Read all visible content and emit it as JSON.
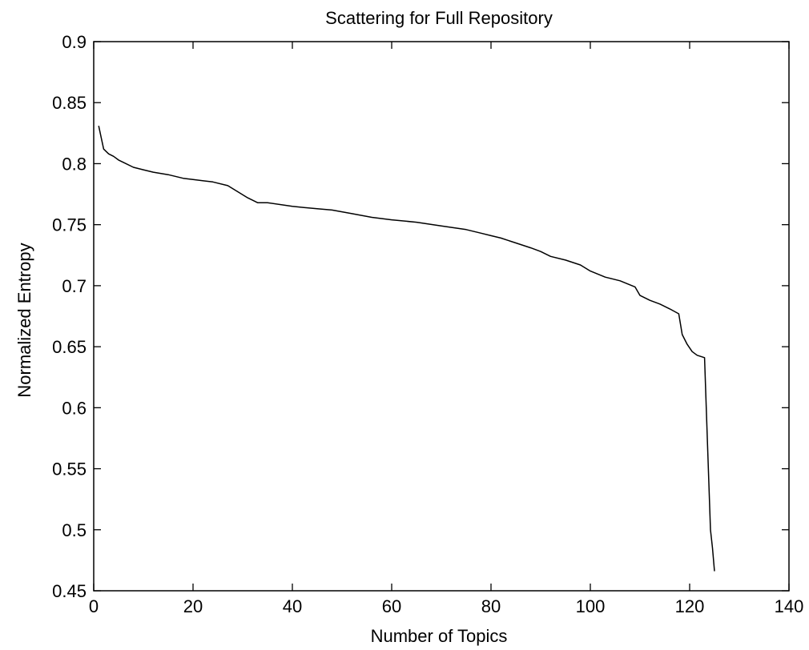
{
  "chart_data": {
    "type": "line",
    "title": "Scattering for Full Repository",
    "xlabel": "Number of Topics",
    "ylabel": "Normalized Entropy",
    "xlim": [
      0,
      140
    ],
    "ylim": [
      0.45,
      0.9
    ],
    "xticks": [
      0,
      20,
      40,
      60,
      80,
      100,
      120,
      140
    ],
    "yticks": [
      0.45,
      0.5,
      0.55,
      0.6,
      0.65,
      0.7,
      0.75,
      0.8,
      0.85,
      0.9
    ],
    "xtick_labels": [
      "0",
      "20",
      "40",
      "60",
      "80",
      "100",
      "120",
      "140"
    ],
    "ytick_labels": [
      "0.45",
      "0.5",
      "0.55",
      "0.6",
      "0.65",
      "0.7",
      "0.75",
      "0.8",
      "0.85",
      "0.9"
    ],
    "grid": false,
    "series": [
      {
        "color": "#000000",
        "x": [
          1,
          2,
          3,
          4,
          5,
          6,
          8,
          10,
          12,
          15,
          18,
          20,
          24,
          27,
          29,
          31,
          33,
          35,
          40,
          45,
          48,
          52,
          56,
          60,
          65,
          70,
          75,
          78,
          80,
          82,
          85,
          88,
          90,
          92,
          95,
          98,
          100,
          103,
          106,
          109,
          110,
          112,
          114,
          116,
          117.8,
          118.5,
          119.5,
          120.5,
          121.5,
          123,
          123.6,
          124.2,
          124.6,
          125
        ],
        "y": [
          0.831,
          0.812,
          0.808,
          0.806,
          0.803,
          0.801,
          0.797,
          0.795,
          0.793,
          0.791,
          0.788,
          0.787,
          0.785,
          0.782,
          0.777,
          0.772,
          0.768,
          0.768,
          0.765,
          0.763,
          0.762,
          0.759,
          0.756,
          0.754,
          0.752,
          0.749,
          0.746,
          0.743,
          0.741,
          0.739,
          0.735,
          0.731,
          0.728,
          0.724,
          0.721,
          0.717,
          0.712,
          0.707,
          0.704,
          0.699,
          0.692,
          0.688,
          0.685,
          0.681,
          0.677,
          0.66,
          0.652,
          0.646,
          0.643,
          0.641,
          0.57,
          0.5,
          0.485,
          0.466
        ]
      }
    ]
  }
}
